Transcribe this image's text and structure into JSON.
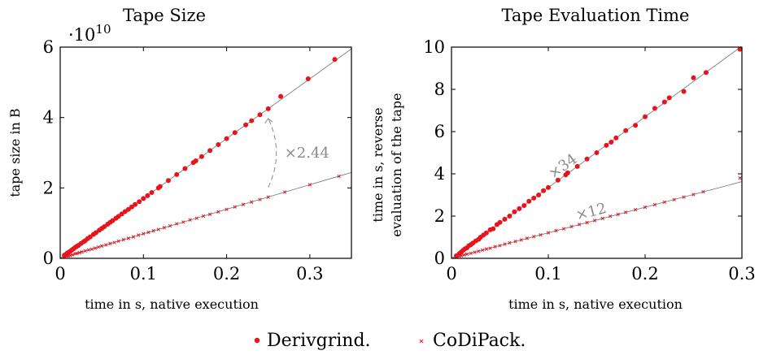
{
  "colors": {
    "derivgrind": "#e8141c",
    "codipack": "#e8141c",
    "fit": "#7f7f7f",
    "annotation": "#8a8a8a"
  },
  "legend": {
    "placement": "bottom-center",
    "items": [
      {
        "label": "Derivgrind.",
        "marker": "dot"
      },
      {
        "label": "CoDiPack.",
        "marker": "x"
      }
    ]
  },
  "chart_data": [
    {
      "type": "scatter",
      "title": "Tape Size",
      "xlabel": "time in s, native execution",
      "ylabel": "tape size in B",
      "y_multiplier": "·10",
      "y_multiplier_exp": "10",
      "xlim": [
        0,
        0.35
      ],
      "ylim": [
        0,
        6
      ],
      "xticks": [
        0,
        0.1,
        0.2,
        0.3
      ],
      "xtick_labels": [
        "0",
        "0.1",
        "0.2",
        "0.3"
      ],
      "yticks": [
        0,
        2,
        4,
        6
      ],
      "ytick_labels": [
        "0",
        "2",
        "4",
        "6"
      ],
      "grid": false,
      "annotation": {
        "text": "×2.44",
        "at_x": 0.25
      },
      "fit_lines": [
        {
          "series": "Derivgrind.",
          "slope": 17.0
        },
        {
          "series": "CoDiPack.",
          "slope": 6.97
        }
      ],
      "series": [
        {
          "name": "Derivgrind.",
          "marker": "dot",
          "x": [
            0.005,
            0.008,
            0.01,
            0.012,
            0.014,
            0.016,
            0.018,
            0.02,
            0.022,
            0.025,
            0.028,
            0.03,
            0.033,
            0.036,
            0.04,
            0.043,
            0.047,
            0.05,
            0.053,
            0.057,
            0.06,
            0.063,
            0.067,
            0.07,
            0.074,
            0.078,
            0.082,
            0.086,
            0.09,
            0.095,
            0.1,
            0.105,
            0.11,
            0.118,
            0.12,
            0.13,
            0.14,
            0.15,
            0.16,
            0.163,
            0.17,
            0.18,
            0.19,
            0.2,
            0.21,
            0.223,
            0.23,
            0.24,
            0.25,
            0.265,
            0.298,
            0.33
          ],
          "y": [
            0.09,
            0.14,
            0.17,
            0.2,
            0.24,
            0.27,
            0.31,
            0.34,
            0.37,
            0.42,
            0.47,
            0.5,
            0.56,
            0.61,
            0.68,
            0.73,
            0.8,
            0.85,
            0.9,
            0.97,
            1.02,
            1.07,
            1.14,
            1.19,
            1.26,
            1.33,
            1.39,
            1.46,
            1.53,
            1.61,
            1.7,
            1.78,
            1.87,
            2.0,
            2.04,
            2.21,
            2.38,
            2.55,
            2.72,
            2.77,
            2.89,
            3.06,
            3.23,
            3.4,
            3.57,
            3.79,
            3.91,
            4.08,
            4.25,
            4.6,
            5.1,
            5.65
          ]
        },
        {
          "name": "CoDiPack.",
          "marker": "x",
          "x": [
            0.005,
            0.008,
            0.01,
            0.012,
            0.015,
            0.018,
            0.02,
            0.023,
            0.026,
            0.03,
            0.034,
            0.038,
            0.042,
            0.046,
            0.05,
            0.055,
            0.06,
            0.065,
            0.07,
            0.076,
            0.082,
            0.088,
            0.094,
            0.1,
            0.106,
            0.112,
            0.118,
            0.125,
            0.132,
            0.14,
            0.148,
            0.156,
            0.164,
            0.172,
            0.18,
            0.19,
            0.2,
            0.21,
            0.22,
            0.23,
            0.24,
            0.25,
            0.27,
            0.3,
            0.335
          ],
          "y": [
            0.04,
            0.06,
            0.07,
            0.08,
            0.1,
            0.13,
            0.14,
            0.16,
            0.18,
            0.21,
            0.24,
            0.26,
            0.29,
            0.32,
            0.35,
            0.38,
            0.42,
            0.45,
            0.49,
            0.53,
            0.57,
            0.61,
            0.66,
            0.7,
            0.74,
            0.78,
            0.82,
            0.87,
            0.92,
            0.98,
            1.03,
            1.09,
            1.14,
            1.2,
            1.25,
            1.32,
            1.39,
            1.46,
            1.53,
            1.6,
            1.67,
            1.74,
            1.88,
            2.09,
            2.33
          ]
        }
      ]
    },
    {
      "type": "scatter",
      "title": "Tape Evaluation Time",
      "xlabel": "time in s, native execution",
      "ylabel_lines": [
        "time in s, reverse",
        "evaluation of the tape"
      ],
      "xlim": [
        0,
        0.3
      ],
      "ylim": [
        0,
        10
      ],
      "xticks": [
        0,
        0.1,
        0.2,
        0.3
      ],
      "xtick_labels": [
        "0",
        "0.1",
        "0.2",
        "0.3"
      ],
      "yticks": [
        0,
        2,
        4,
        6,
        8,
        10
      ],
      "ytick_labels": [
        "0",
        "2",
        "4",
        "6",
        "8",
        "10"
      ],
      "grid": false,
      "annotations": [
        {
          "text": "×34",
          "at_x": 0.105,
          "on_series": "Derivgrind."
        },
        {
          "text": "×12",
          "at_x": 0.13,
          "on_series": "CoDiPack."
        }
      ],
      "fit_lines": [
        {
          "series": "Derivgrind.",
          "slope": 33.5
        },
        {
          "series": "CoDiPack.",
          "slope": 12.1
        }
      ],
      "series": [
        {
          "name": "Derivgrind.",
          "marker": "dot",
          "x": [
            0.005,
            0.008,
            0.01,
            0.012,
            0.014,
            0.016,
            0.018,
            0.02,
            0.022,
            0.025,
            0.028,
            0.03,
            0.033,
            0.036,
            0.04,
            0.043,
            0.047,
            0.05,
            0.055,
            0.06,
            0.065,
            0.07,
            0.075,
            0.08,
            0.085,
            0.09,
            0.095,
            0.1,
            0.11,
            0.118,
            0.12,
            0.13,
            0.14,
            0.15,
            0.16,
            0.165,
            0.17,
            0.18,
            0.19,
            0.2,
            0.21,
            0.22,
            0.225,
            0.24,
            0.25,
            0.263,
            0.298
          ],
          "y": [
            0.12,
            0.22,
            0.3,
            0.38,
            0.45,
            0.5,
            0.6,
            0.65,
            0.72,
            0.82,
            0.9,
            1.0,
            1.1,
            1.2,
            1.35,
            1.4,
            1.6,
            1.7,
            1.85,
            2.0,
            2.2,
            2.35,
            2.5,
            2.7,
            2.85,
            3.0,
            3.2,
            3.35,
            3.7,
            3.95,
            4.05,
            4.35,
            4.7,
            5.0,
            5.35,
            5.5,
            5.7,
            6.05,
            6.3,
            6.7,
            7.1,
            7.4,
            7.6,
            7.9,
            8.55,
            8.8,
            9.9
          ]
        },
        {
          "name": "CoDiPack.",
          "marker": "x",
          "x": [
            0.005,
            0.008,
            0.01,
            0.013,
            0.016,
            0.02,
            0.024,
            0.028,
            0.032,
            0.036,
            0.04,
            0.045,
            0.05,
            0.055,
            0.06,
            0.066,
            0.072,
            0.078,
            0.085,
            0.092,
            0.1,
            0.108,
            0.116,
            0.124,
            0.132,
            0.14,
            0.148,
            0.156,
            0.164,
            0.172,
            0.18,
            0.19,
            0.2,
            0.21,
            0.22,
            0.23,
            0.24,
            0.25,
            0.26,
            0.298
          ],
          "y": [
            0.06,
            0.1,
            0.12,
            0.16,
            0.2,
            0.24,
            0.29,
            0.34,
            0.39,
            0.44,
            0.48,
            0.55,
            0.6,
            0.67,
            0.73,
            0.8,
            0.87,
            0.95,
            1.03,
            1.11,
            1.21,
            1.31,
            1.4,
            1.5,
            1.6,
            1.69,
            1.79,
            1.89,
            1.99,
            2.08,
            2.18,
            2.3,
            2.42,
            2.54,
            2.66,
            2.78,
            2.9,
            3.02,
            3.15,
            3.8
          ]
        }
      ]
    }
  ]
}
